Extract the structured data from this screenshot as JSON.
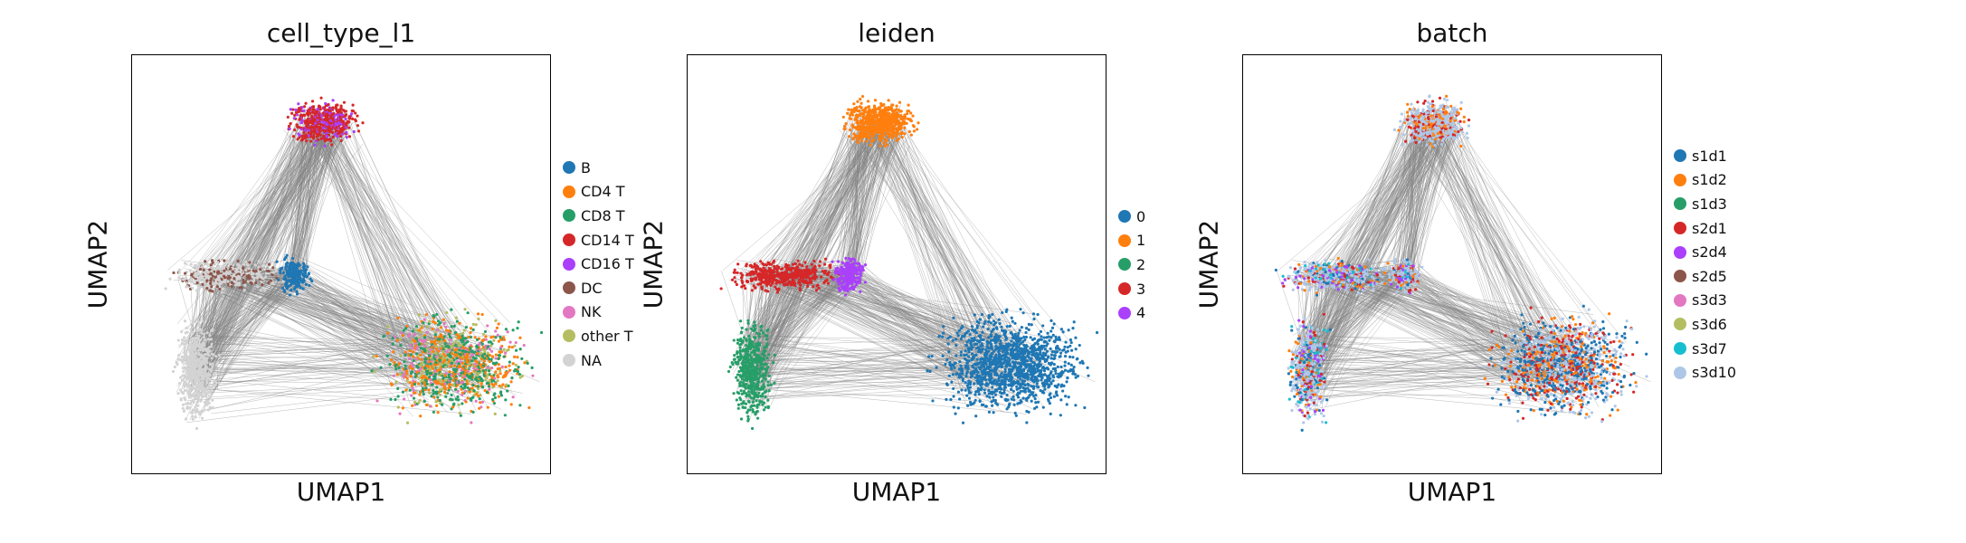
{
  "chart_data": [
    {
      "type": "scatter",
      "title": "cell_type_l1",
      "xlabel": "UMAP1",
      "ylabel": "UMAP2",
      "legend_placement": "right",
      "grid": false,
      "series": [
        {
          "name": "B",
          "color": "#1f77b4"
        },
        {
          "name": "CD4 T",
          "color": "#ff7f0e"
        },
        {
          "name": "CD8 T",
          "color": "#279e68"
        },
        {
          "name": "CD14 T",
          "color": "#d62728"
        },
        {
          "name": "CD16 T",
          "color": "#aa40fc"
        },
        {
          "name": "DC",
          "color": "#8c564b"
        },
        {
          "name": "NK",
          "color": "#e377c2"
        },
        {
          "name": "other T",
          "color": "#b5bd61"
        },
        {
          "name": "NA",
          "color": "#d3d3d3"
        }
      ]
    },
    {
      "type": "scatter",
      "title": "leiden",
      "xlabel": "UMAP1",
      "ylabel": "UMAP2",
      "legend_placement": "right",
      "grid": false,
      "series": [
        {
          "name": "0",
          "color": "#1f77b4"
        },
        {
          "name": "1",
          "color": "#ff7f0e"
        },
        {
          "name": "2",
          "color": "#279e68"
        },
        {
          "name": "3",
          "color": "#d62728"
        },
        {
          "name": "4",
          "color": "#aa40fc"
        }
      ]
    },
    {
      "type": "scatter",
      "title": "batch",
      "xlabel": "UMAP1",
      "ylabel": "UMAP2",
      "legend_placement": "right",
      "grid": false,
      "series": [
        {
          "name": "s1d1",
          "color": "#1f77b4"
        },
        {
          "name": "s1d2",
          "color": "#ff7f0e"
        },
        {
          "name": "s1d3",
          "color": "#279e68"
        },
        {
          "name": "s2d1",
          "color": "#d62728"
        },
        {
          "name": "s2d4",
          "color": "#aa40fc"
        },
        {
          "name": "s2d5",
          "color": "#8c564b"
        },
        {
          "name": "s3d3",
          "color": "#e377c2"
        },
        {
          "name": "s3d6",
          "color": "#b5bd61"
        },
        {
          "name": "s3d7",
          "color": "#17becf"
        },
        {
          "name": "s3d10",
          "color": "#aec7e8"
        }
      ]
    }
  ]
}
